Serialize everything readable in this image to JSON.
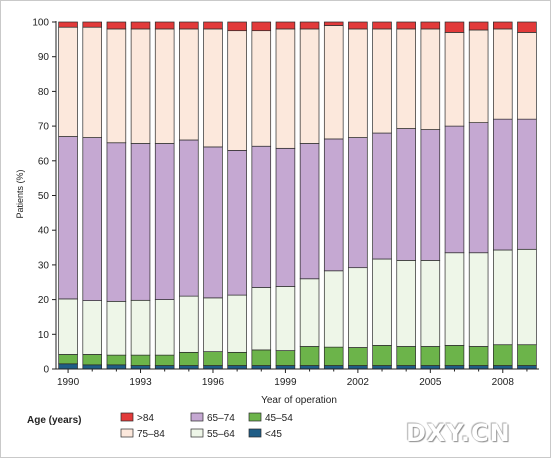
{
  "chart_data": {
    "type": "bar",
    "stacked": true,
    "xlabel": "Year of operation",
    "ylabel": "Patients (%)",
    "ylim": [
      0,
      100
    ],
    "yticks": [
      0,
      10,
      20,
      30,
      40,
      50,
      60,
      70,
      80,
      90,
      100
    ],
    "categories": [
      1990,
      1991,
      1992,
      1993,
      1994,
      1995,
      1996,
      1997,
      1998,
      1999,
      2000,
      2001,
      2002,
      2003,
      2004,
      2005,
      2006,
      2007,
      2008,
      2009
    ],
    "xtick_labels": [
      "1990",
      "1993",
      "1996",
      "1999",
      "2002",
      "2005",
      "2008"
    ],
    "legend": {
      "title": "Age (years)",
      "placement": "bottom-left",
      "entries": [
        ">84",
        "75–84",
        "65–74",
        "55–64",
        "45–54",
        "<45"
      ]
    },
    "series": [
      {
        "name": "<45",
        "color": "#1f5d86",
        "values": [
          1.5,
          1.2,
          1.2,
          1.0,
          1.0,
          1.0,
          1.0,
          1.0,
          1.0,
          1.0,
          1.0,
          1.0,
          1.0,
          1.0,
          1.0,
          1.0,
          1.0,
          1.0,
          1.0,
          1.0
        ]
      },
      {
        "name": "45–54",
        "color": "#6cb44a",
        "values": [
          2.7,
          3.0,
          2.8,
          3.0,
          3.0,
          3.8,
          4.0,
          3.8,
          4.5,
          4.3,
          5.5,
          5.3,
          5.2,
          5.8,
          5.5,
          5.5,
          5.8,
          5.5,
          6.0,
          6.0
        ]
      },
      {
        "name": "55–64",
        "color": "#eef6e8",
        "values": [
          16.0,
          15.5,
          15.5,
          15.8,
          16.0,
          16.2,
          15.5,
          16.5,
          18.0,
          18.5,
          19.5,
          22.0,
          23.0,
          24.9,
          24.8,
          24.8,
          26.7,
          27.0,
          27.3,
          27.5
        ]
      },
      {
        "name": "65–74",
        "color": "#c5a8d2",
        "values": [
          46.8,
          47.0,
          45.7,
          45.2,
          45.0,
          45.0,
          43.5,
          41.7,
          40.7,
          39.8,
          39.0,
          38.0,
          37.5,
          36.3,
          38.0,
          37.7,
          36.5,
          37.5,
          37.7,
          37.5
        ]
      },
      {
        "name": "75–84",
        "color": "#fce8dc",
        "values": [
          31.5,
          31.8,
          32.8,
          33.0,
          33.0,
          32.0,
          34.0,
          34.5,
          33.3,
          34.4,
          33.0,
          32.7,
          31.3,
          30.0,
          28.7,
          29.0,
          27.0,
          26.7,
          26.0,
          25.0
        ]
      },
      {
        "name": ">84",
        "color": "#e23a3a",
        "values": [
          1.5,
          1.5,
          2.0,
          2.0,
          2.0,
          2.0,
          2.0,
          2.5,
          2.5,
          2.0,
          2.0,
          1.0,
          2.0,
          2.0,
          2.0,
          2.0,
          3.0,
          2.3,
          2.0,
          3.0
        ]
      }
    ]
  },
  "watermark": "DXY.CN"
}
